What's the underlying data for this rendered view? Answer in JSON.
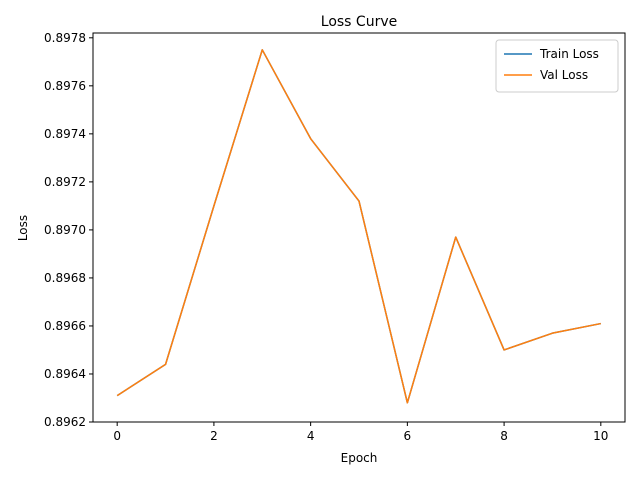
{
  "chart_data": {
    "type": "line",
    "title": "Loss Curve",
    "xlabel": "Epoch",
    "ylabel": "Loss",
    "xlim": [
      -0.5,
      10.5
    ],
    "ylim": [
      0.8962,
      0.89782
    ],
    "xticks": [
      0,
      2,
      4,
      6,
      8,
      10
    ],
    "xtick_labels": [
      "0",
      "2",
      "4",
      "6",
      "8",
      "10"
    ],
    "yticks": [
      0.8962,
      0.8964,
      0.8966,
      0.8968,
      0.897,
      0.8972,
      0.8974,
      0.8976,
      0.8978
    ],
    "ytick_labels": [
      "0.8962",
      "0.8964",
      "0.8966",
      "0.8968",
      "0.8970",
      "0.8972",
      "0.8974",
      "0.8976",
      "0.8978"
    ],
    "grid": false,
    "legend_position": "top-right",
    "x": [
      0,
      1,
      2,
      3,
      4,
      5,
      6,
      7,
      8,
      9,
      10
    ],
    "series": [
      {
        "name": "Train Loss",
        "color": "#1f77b4",
        "values": [
          0.89631,
          0.89644,
          0.8971,
          0.89775,
          0.89738,
          0.89712,
          0.89628,
          0.89697,
          0.8965,
          0.89657,
          0.89661
        ]
      },
      {
        "name": "Val Loss",
        "color": "#ff7f0e",
        "values": [
          0.89631,
          0.89644,
          0.8971,
          0.89775,
          0.89738,
          0.89712,
          0.89628,
          0.89697,
          0.8965,
          0.89657,
          0.89661
        ]
      }
    ]
  }
}
